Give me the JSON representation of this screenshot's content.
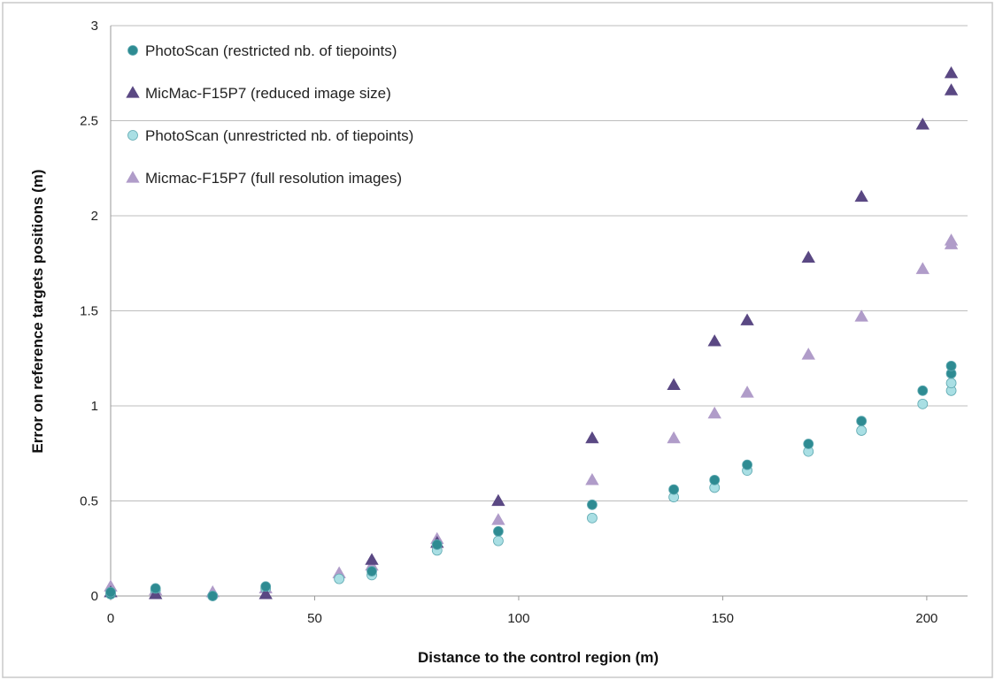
{
  "chart_data": {
    "type": "scatter",
    "title": "",
    "xlabel": "Distance to the control region (m)",
    "ylabel": "Error on reference targets positions (m)",
    "xlim": [
      0,
      210
    ],
    "ylim": [
      0,
      3
    ],
    "xticks": [
      0,
      50,
      100,
      150,
      200
    ],
    "yticks": [
      0,
      0.5,
      1,
      1.5,
      2,
      2.5,
      3
    ],
    "grid": "horizontal",
    "legend_position": "top-left",
    "series": [
      {
        "name": "PhotoScan  (restricted nb. of tiepoints)",
        "marker": "circle",
        "color": "#2e8b92",
        "points": [
          [
            0,
            0.01
          ],
          [
            0,
            0.02
          ],
          [
            11,
            0.04
          ],
          [
            25,
            0.0
          ],
          [
            38,
            0.05
          ],
          [
            64,
            0.13
          ],
          [
            80,
            0.27
          ],
          [
            95,
            0.34
          ],
          [
            118,
            0.48
          ],
          [
            138,
            0.56
          ],
          [
            148,
            0.61
          ],
          [
            156,
            0.69
          ],
          [
            171,
            0.8
          ],
          [
            184,
            0.92
          ],
          [
            199,
            1.08
          ],
          [
            206,
            1.17
          ],
          [
            206,
            1.21
          ]
        ]
      },
      {
        "name": "MicMac-F15P7  (reduced image size)",
        "marker": "triangle",
        "color": "#5a4883",
        "points": [
          [
            0,
            0.02
          ],
          [
            11,
            0.01
          ],
          [
            38,
            0.01
          ],
          [
            64,
            0.19
          ],
          [
            80,
            0.28
          ],
          [
            95,
            0.5
          ],
          [
            118,
            0.83
          ],
          [
            138,
            1.11
          ],
          [
            148,
            1.34
          ],
          [
            156,
            1.45
          ],
          [
            171,
            1.78
          ],
          [
            184,
            2.1
          ],
          [
            199,
            2.48
          ],
          [
            206,
            2.66
          ],
          [
            206,
            2.75
          ]
        ]
      },
      {
        "name": "PhotoScan  (unrestricted nb. of tiepoints)",
        "marker": "circle",
        "color": "#a9dfe4",
        "points": [
          [
            0,
            0.01
          ],
          [
            11,
            0.03
          ],
          [
            25,
            0.0
          ],
          [
            38,
            0.04
          ],
          [
            56,
            0.09
          ],
          [
            64,
            0.11
          ],
          [
            80,
            0.24
          ],
          [
            95,
            0.29
          ],
          [
            118,
            0.41
          ],
          [
            138,
            0.52
          ],
          [
            148,
            0.57
          ],
          [
            156,
            0.66
          ],
          [
            171,
            0.76
          ],
          [
            184,
            0.87
          ],
          [
            199,
            1.01
          ],
          [
            206,
            1.08
          ],
          [
            206,
            1.12
          ]
        ]
      },
      {
        "name": "Micmac-F15P7  (full resolution images)",
        "marker": "triangle",
        "color": "#b09cc9",
        "points": [
          [
            0,
            0.05
          ],
          [
            11,
            0.03
          ],
          [
            25,
            0.02
          ],
          [
            38,
            0.04
          ],
          [
            56,
            0.12
          ],
          [
            64,
            0.16
          ],
          [
            80,
            0.3
          ],
          [
            95,
            0.4
          ],
          [
            118,
            0.61
          ],
          [
            138,
            0.83
          ],
          [
            148,
            0.96
          ],
          [
            156,
            1.07
          ],
          [
            171,
            1.27
          ],
          [
            184,
            1.47
          ],
          [
            199,
            1.72
          ],
          [
            206,
            1.85
          ],
          [
            206,
            1.87
          ]
        ]
      }
    ]
  }
}
